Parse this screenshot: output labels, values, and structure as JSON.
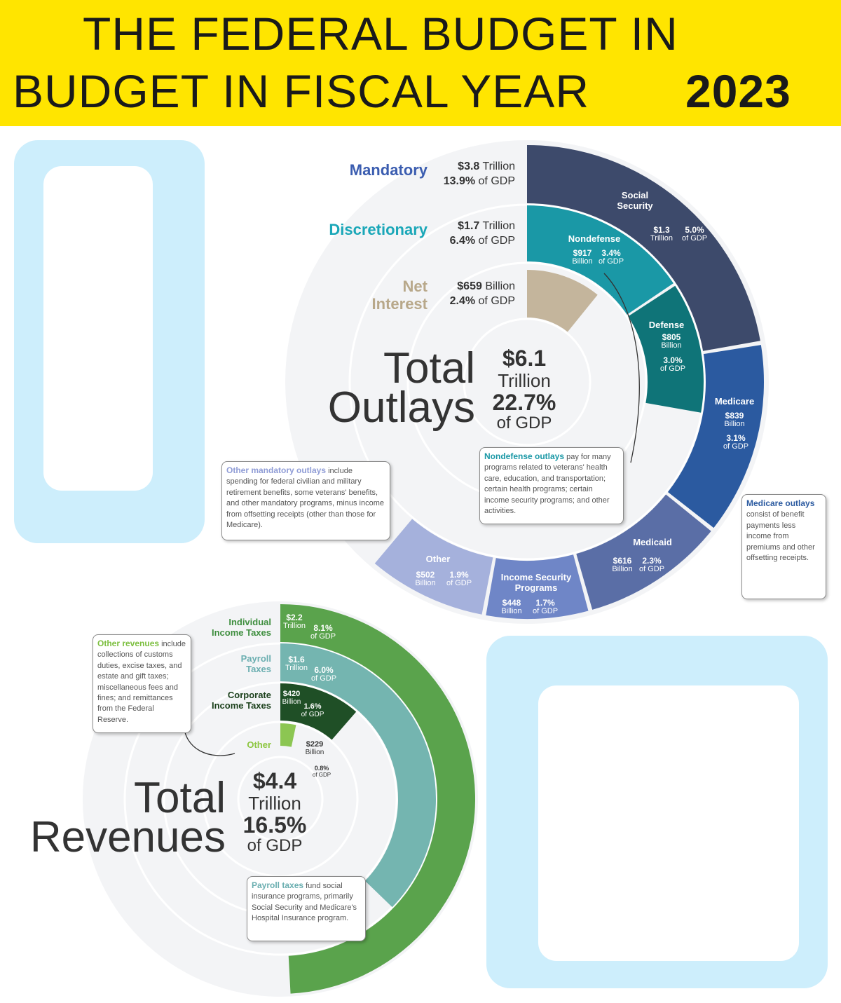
{
  "header": {
    "title_line1": "THE FEDERAL BUDGET IN",
    "title_line2": "BUDGET IN  FISCAL YEAR",
    "year": "2023"
  },
  "outlays": {
    "legend": [
      {
        "label": "Mandatory",
        "amount": "$3.8",
        "unit": "Trillion",
        "gdp": "13.9%",
        "gdp_unit": "of GDP"
      },
      {
        "label": "Discretionary",
        "amount": "$1.7",
        "unit": "Trillion",
        "gdp": "6.4%",
        "gdp_unit": "of GDP"
      },
      {
        "label": "Net Interest",
        "amount": "$659",
        "unit": "Billion",
        "gdp": "2.4%",
        "gdp_unit": "of GDP"
      }
    ],
    "total": {
      "label_line1": "Total",
      "label_line2": "Outlays",
      "amount": "$6.1",
      "unit": "Trillion",
      "gdp": "22.7%",
      "gdp_unit": "of GDP"
    },
    "segments": [
      {
        "name": "Social Security",
        "amount": "$1.3",
        "unit": "Trillion",
        "gdp": "5.0%",
        "gdp_unit": "of GDP"
      },
      {
        "name": "Nondefense",
        "amount": "$917",
        "unit": "Billion",
        "gdp": "3.4%",
        "gdp_unit": "of GDP"
      },
      {
        "name": "Defense",
        "amount": "$805",
        "unit": "Billion",
        "gdp": "3.0%",
        "gdp_unit": "of GDP"
      },
      {
        "name": "Medicare",
        "amount": "$839",
        "unit": "Billion",
        "gdp": "3.1%",
        "gdp_unit": "of GDP"
      },
      {
        "name": "Medicaid",
        "amount": "$616",
        "unit": "Billion",
        "gdp": "2.3%",
        "gdp_unit": "of GDP"
      },
      {
        "name": "Income Security Programs",
        "amount": "$448",
        "unit": "Billion",
        "gdp": "1.7%",
        "gdp_unit": "of GDP"
      },
      {
        "name": "Other",
        "amount": "$502",
        "unit": "Billion",
        "gdp": "1.9%",
        "gdp_unit": "of GDP"
      }
    ],
    "notes": [
      {
        "title": "Other mandatory outlays",
        "text": "include spending for federal civilian and military retirement benefits, some veterans' benefits, and other mandatory programs, minus income from offsetting receipts (other than those for Medicare)."
      },
      {
        "title": "Nondefense outlays",
        "text": "pay for many programs related to veterans' health care, education, and transportation; certain health programs; certain income security programs; and other activities."
      },
      {
        "title": "Medicare outlays",
        "text": "consist of benefit payments less income from premiums and other offsetting receipts."
      }
    ]
  },
  "revenues": {
    "total": {
      "label_line1": "Total",
      "label_line2": "Revenues",
      "amount": "$4.4",
      "unit": "Trillion",
      "gdp": "16.5%",
      "gdp_unit": "of GDP"
    },
    "segments": [
      {
        "name": "Individual Income Taxes",
        "amount": "$2.2",
        "unit": "Trillion",
        "gdp": "8.1%",
        "gdp_unit": "of GDP"
      },
      {
        "name": "Payroll Taxes",
        "amount": "$1.6",
        "unit": "Trillion",
        "gdp": "6.0%",
        "gdp_unit": "of GDP"
      },
      {
        "name": "Corporate Income Taxes",
        "amount": "$420",
        "unit": "Billion",
        "gdp": "1.6%",
        "gdp_unit": "of GDP"
      },
      {
        "name": "Other",
        "amount": "$229",
        "unit": "Billion",
        "gdp": "0.8%",
        "gdp_unit": "of GDP"
      }
    ],
    "notes": [
      {
        "title": "Other revenues",
        "text": "include collections of customs duties, excise taxes, and estate and gift taxes; miscellaneous fees and fines; and remittances from the Federal Reserve."
      },
      {
        "title": "Payroll taxes",
        "text": "fund social insurance programs, primarily Social Security and Medicare's Hospital Insurance program."
      }
    ]
  }
}
